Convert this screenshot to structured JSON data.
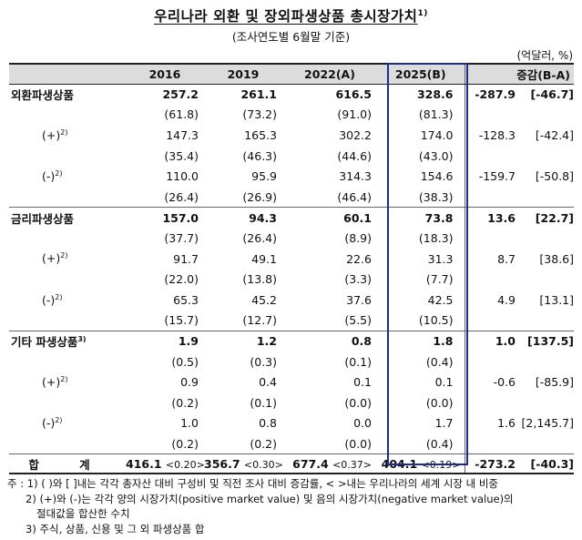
{
  "title": "우리나라 외환 및 장외파생상품 총시장가치",
  "title_sup": "1)",
  "subtitle": "(조사연도별 6월말 기준)",
  "unit": "(억달러, %)",
  "headers": [
    "",
    "2016",
    "2019",
    "2022(A)",
    "2025(B)",
    "증감(B-A)"
  ],
  "rows": [
    {
      "label": "외환파생상품",
      "sup": "",
      "kind": "main",
      "v2016": "257.2",
      "v2019": "261.1",
      "v2022": "616.5",
      "v2025": "328.6",
      "diff": "-287.9",
      "pct": "[-46.7]"
    },
    {
      "label": "",
      "sup": "",
      "kind": "share",
      "v2016": "(61.8)",
      "v2019": "(73.2)",
      "v2022": "(91.0)",
      "v2025": "(81.3)",
      "diff": "",
      "pct": ""
    },
    {
      "label": "(+)",
      "sup": "2)",
      "kind": "sub",
      "v2016": "147.3",
      "v2019": "165.3",
      "v2022": "302.2",
      "v2025": "174.0",
      "diff": "-128.3",
      "pct": "[-42.4]"
    },
    {
      "label": "",
      "sup": "",
      "kind": "share",
      "v2016": "(35.4)",
      "v2019": "(46.3)",
      "v2022": "(44.6)",
      "v2025": "(43.0)",
      "diff": "",
      "pct": ""
    },
    {
      "label": "(-)",
      "sup": "2)",
      "kind": "sub",
      "v2016": "110.0",
      "v2019": "95.9",
      "v2022": "314.3",
      "v2025": "154.6",
      "diff": "-159.7",
      "pct": "[-50.8]"
    },
    {
      "label": "",
      "sup": "",
      "kind": "share end",
      "v2016": "(26.4)",
      "v2019": "(26.9)",
      "v2022": "(46.4)",
      "v2025": "(38.3)",
      "diff": "",
      "pct": ""
    },
    {
      "label": "금리파생상품",
      "sup": "",
      "kind": "main",
      "v2016": "157.0",
      "v2019": "94.3",
      "v2022": "60.1",
      "v2025": "73.8",
      "diff": "13.6",
      "pct": "[22.7]"
    },
    {
      "label": "",
      "sup": "",
      "kind": "share",
      "v2016": "(37.7)",
      "v2019": "(26.4)",
      "v2022": "(8.9)",
      "v2025": "(18.3)",
      "diff": "",
      "pct": ""
    },
    {
      "label": "(+)",
      "sup": "2)",
      "kind": "sub",
      "v2016": "91.7",
      "v2019": "49.1",
      "v2022": "22.6",
      "v2025": "31.3",
      "diff": "8.7",
      "pct": "[38.6]"
    },
    {
      "label": "",
      "sup": "",
      "kind": "share",
      "v2016": "(22.0)",
      "v2019": "(13.8)",
      "v2022": "(3.3)",
      "v2025": "(7.7)",
      "diff": "",
      "pct": ""
    },
    {
      "label": "(-)",
      "sup": "2)",
      "kind": "sub",
      "v2016": "65.3",
      "v2019": "45.2",
      "v2022": "37.6",
      "v2025": "42.5",
      "diff": "4.9",
      "pct": "[13.1]"
    },
    {
      "label": "",
      "sup": "",
      "kind": "share end",
      "v2016": "(15.7)",
      "v2019": "(12.7)",
      "v2022": "(5.5)",
      "v2025": "(10.5)",
      "diff": "",
      "pct": ""
    },
    {
      "label": "기타 파생상품",
      "sup": "3)",
      "kind": "main",
      "v2016": "1.9",
      "v2019": "1.2",
      "v2022": "0.8",
      "v2025": "1.8",
      "diff": "1.0",
      "pct": "[137.5]"
    },
    {
      "label": "",
      "sup": "",
      "kind": "share",
      "v2016": "(0.5)",
      "v2019": "(0.3)",
      "v2022": "(0.1)",
      "v2025": "(0.4)",
      "diff": "",
      "pct": ""
    },
    {
      "label": "(+)",
      "sup": "2)",
      "kind": "sub",
      "v2016": "0.9",
      "v2019": "0.4",
      "v2022": "0.1",
      "v2025": "0.1",
      "diff": "-0.6",
      "pct": "[-85.9]"
    },
    {
      "label": "",
      "sup": "",
      "kind": "share",
      "v2016": "(0.2)",
      "v2019": "(0.1)",
      "v2022": "(0.0)",
      "v2025": "(0.0)",
      "diff": "",
      "pct": ""
    },
    {
      "label": "(-)",
      "sup": "2)",
      "kind": "sub",
      "v2016": "1.0",
      "v2019": "0.8",
      "v2022": "0.0",
      "v2025": "1.7",
      "diff": "1.6",
      "pct": "[2,145.7]"
    },
    {
      "label": "",
      "sup": "",
      "kind": "share end",
      "v2016": "(0.2)",
      "v2019": "(0.2)",
      "v2022": "(0.0)",
      "v2025": "(0.4)",
      "diff": "",
      "pct": ""
    }
  ],
  "total": {
    "label": "합 계",
    "v2016": "416.1",
    "s2016": "<0.20>",
    "v2019": "356.7",
    "s2019": "<0.30>",
    "v2022": "677.4",
    "s2022": "<0.37>",
    "v2025": "404.1",
    "s2025": "<0.19>",
    "diff": "-273.2",
    "pct": "[-40.3]"
  },
  "notes": [
    "주 : 1) ( )와 [ ]내는 각각 총자산 대비 구성비 및 직전 조사 대비 증감률, < >내는 우리나라의 세계 시장 내 비중",
    "2) (+)와 (-)는 각각 양의 시장가치(positive market value) 및 음의 시장가치(negative market value)의",
    "절대값을 합산한 수치",
    "3) 주식, 상품, 신용 및 그 외 파생상품 합"
  ],
  "colors": {
    "header_bg": "#dcdcdc",
    "highlight_border": "#1f2b8f"
  }
}
